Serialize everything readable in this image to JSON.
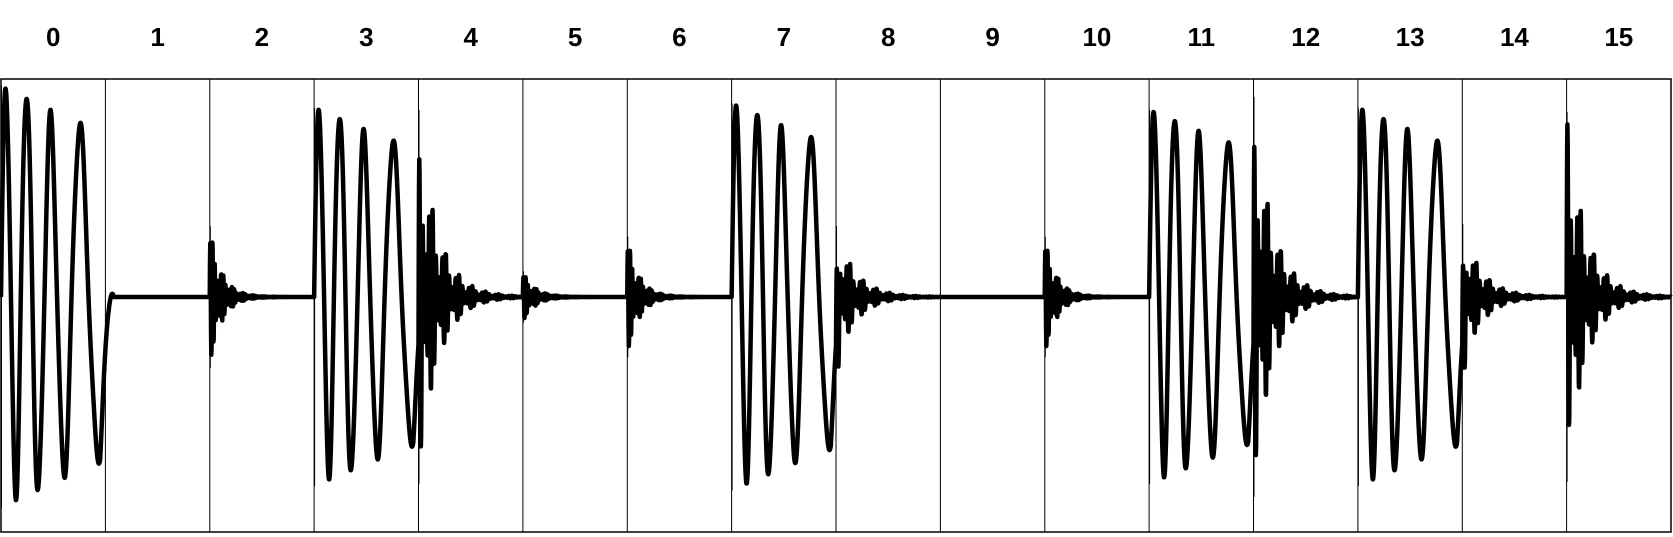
{
  "chart_data": {
    "type": "waveform",
    "categories": [
      "0",
      "1",
      "2",
      "3",
      "4",
      "5",
      "6",
      "7",
      "8",
      "9",
      "10",
      "11",
      "12",
      "13",
      "14",
      "15"
    ],
    "series": [
      {
        "hits": [
          {
            "step": 0,
            "kind": "kick",
            "amplitude": 0.98
          },
          {
            "step": 2,
            "kind": "hat",
            "amplitude": 0.33
          },
          {
            "step": 3,
            "kind": "kick",
            "amplitude": 0.88
          },
          {
            "step": 4,
            "kind": "snare",
            "amplitude": 0.87
          },
          {
            "step": 5,
            "kind": "hat",
            "amplitude": 0.12
          },
          {
            "step": 6,
            "kind": "hat",
            "amplitude": 0.28
          },
          {
            "step": 7,
            "kind": "kick",
            "amplitude": 0.9
          },
          {
            "step": 8,
            "kind": "snare",
            "amplitude": 0.33
          },
          {
            "step": 10,
            "kind": "hat",
            "amplitude": 0.28
          },
          {
            "step": 11,
            "kind": "kick",
            "amplitude": 0.87
          },
          {
            "step": 12,
            "kind": "snare",
            "amplitude": 0.93
          },
          {
            "step": 13,
            "kind": "kick",
            "amplitude": 0.88
          },
          {
            "step": 14,
            "kind": "snare",
            "amplitude": 0.34
          },
          {
            "step": 15,
            "kind": "snare",
            "amplitude": 0.86
          }
        ]
      }
    ],
    "ylim": [
      -1,
      1
    ],
    "grid": true,
    "legend": "none",
    "colors": {
      "waveform": "#000000",
      "grid": "#000000",
      "background": "#ffffff"
    }
  }
}
